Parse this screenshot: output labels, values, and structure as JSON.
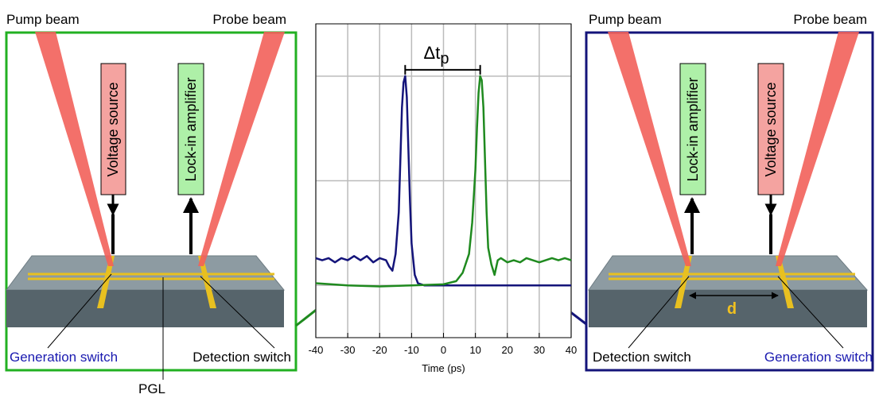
{
  "chart_data": {
    "type": "line",
    "x_label": "Time (ps)",
    "xlim": [
      -40,
      40
    ],
    "xticks": [
      -40,
      -30,
      -20,
      -10,
      0,
      10,
      20,
      30,
      40
    ],
    "ylim": [
      -0.25,
      1.25
    ],
    "yticks": [
      0,
      0.5,
      1
    ],
    "grid": true,
    "annotation": {
      "main": "Δt",
      "sub": "p"
    },
    "series": [
      {
        "color": "#14147a",
        "x": [
          -40,
          -38,
          -36,
          -34,
          -32,
          -30,
          -28,
          -26,
          -24,
          -22,
          -20,
          -18,
          -17,
          -16,
          -15,
          -14,
          -13.5,
          -13,
          -12.5,
          -12,
          -11.5,
          -11,
          -10.5,
          -10,
          -9,
          -8,
          -6,
          -4,
          0,
          5,
          10,
          20,
          30,
          40
        ],
        "values": [
          0.13,
          0.12,
          0.13,
          0.11,
          0.13,
          0.12,
          0.14,
          0.12,
          0.14,
          0.11,
          0.13,
          0.12,
          0.09,
          0.07,
          0.15,
          0.35,
          0.6,
          0.85,
          0.97,
          1.0,
          0.9,
          0.65,
          0.4,
          0.2,
          0.05,
          0.01,
          0,
          0,
          0,
          0,
          0,
          0,
          0,
          0
        ]
      },
      {
        "color": "#1f8a1f",
        "x": [
          -40,
          -30,
          -20,
          -10,
          0,
          4,
          6,
          8,
          9,
          10,
          10.5,
          11,
          11.5,
          12,
          12.5,
          13,
          13.5,
          14,
          15,
          16,
          17,
          18,
          20,
          22,
          24,
          26,
          28,
          30,
          32,
          34,
          36,
          38,
          40
        ],
        "values": [
          0.01,
          0,
          -0.005,
          0,
          0.005,
          0.02,
          0.06,
          0.15,
          0.3,
          0.55,
          0.75,
          0.92,
          1.0,
          0.98,
          0.85,
          0.6,
          0.35,
          0.18,
          0.1,
          0.05,
          0.12,
          0.13,
          0.11,
          0.12,
          0.11,
          0.13,
          0.12,
          0.11,
          0.12,
          0.13,
          0.12,
          0.13,
          0.12
        ]
      }
    ]
  },
  "left_panel": {
    "pump": "Pump beam",
    "probe": "Probe beam",
    "source": "Voltage source",
    "amplifier": "Lock-in amplifier",
    "generation": "Generation switch",
    "detection": "Detection switch",
    "pgl": "PGL"
  },
  "right_panel": {
    "pump": "Pump beam",
    "probe": "Probe beam",
    "source": "Voltage source",
    "amplifier": "Lock-in amplifier",
    "generation": "Generation switch",
    "detection": "Detection switch",
    "distance": "d"
  }
}
